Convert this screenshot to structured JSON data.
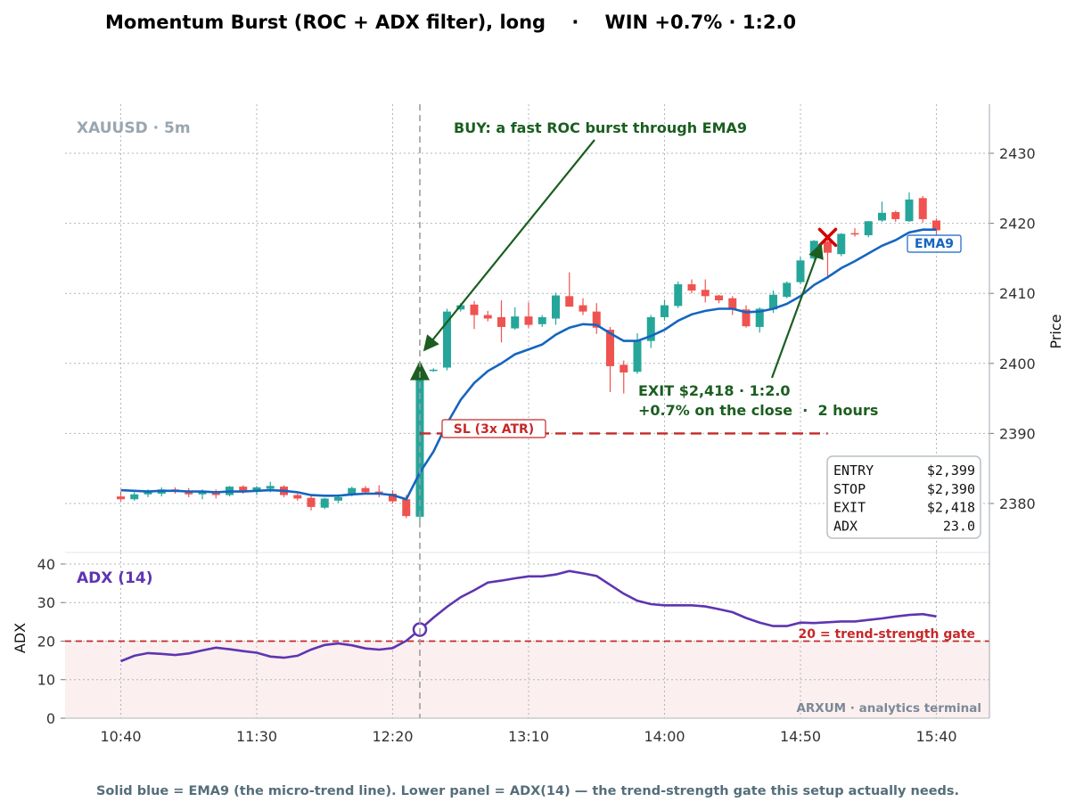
{
  "title": "Momentum Burst (ROC + ADX filter), long    ·    WIN +0.7% · 1:2.0",
  "footer": "Solid blue = EMA9 (the micro-trend line). Lower panel = ADX(14) — the trend-strength gate this setup actually needs.",
  "colors": {
    "bull": "#26a69a",
    "bear": "#ef5350",
    "ema": "#1565c0",
    "adx": "#5e35b1",
    "stop": "#c62828",
    "annot": "#1b5e20",
    "exit_marker": "#d50000"
  },
  "chart_data": [
    {
      "type": "candlestick",
      "instrument_label": "XAUUSD · 5m",
      "ylabel": "Price",
      "ylim": [
        2373,
        2437
      ],
      "yticks": [
        2380,
        2390,
        2400,
        2410,
        2420,
        2430
      ],
      "xticks": [
        "10:40",
        "11:30",
        "12:20",
        "13:10",
        "14:00",
        "14:50",
        "15:40"
      ],
      "grid": true,
      "candles": [
        {
          "t": "10:40",
          "o": 2381,
          "h": 2381.7,
          "l": 2380.3,
          "c": 2380.6
        },
        {
          "t": "10:45",
          "o": 2380.6,
          "h": 2381.6,
          "l": 2380.4,
          "c": 2381.3
        },
        {
          "t": "10:50",
          "o": 2381.3,
          "h": 2382.0,
          "l": 2380.9,
          "c": 2381.6
        },
        {
          "t": "10:55",
          "o": 2381.4,
          "h": 2382.3,
          "l": 2381.0,
          "c": 2382.0
        },
        {
          "t": "11:00",
          "o": 2382.0,
          "h": 2382.3,
          "l": 2381.4,
          "c": 2381.8
        },
        {
          "t": "11:05",
          "o": 2381.8,
          "h": 2382.2,
          "l": 2380.9,
          "c": 2381.3
        },
        {
          "t": "11:10",
          "o": 2381.3,
          "h": 2382.0,
          "l": 2380.6,
          "c": 2381.7
        },
        {
          "t": "11:15",
          "o": 2381.7,
          "h": 2382.0,
          "l": 2380.7,
          "c": 2381.2
        },
        {
          "t": "11:20",
          "o": 2381.2,
          "h": 2382.5,
          "l": 2381.0,
          "c": 2382.4
        },
        {
          "t": "11:25",
          "o": 2382.4,
          "h": 2382.6,
          "l": 2381.4,
          "c": 2381.8
        },
        {
          "t": "11:30",
          "o": 2381.8,
          "h": 2382.5,
          "l": 2381.2,
          "c": 2382.3
        },
        {
          "t": "11:35",
          "o": 2382.1,
          "h": 2383.1,
          "l": 2381.6,
          "c": 2382.5
        },
        {
          "t": "11:40",
          "o": 2382.4,
          "h": 2382.6,
          "l": 2380.9,
          "c": 2381.2
        },
        {
          "t": "11:45",
          "o": 2381.2,
          "h": 2381.4,
          "l": 2380.4,
          "c": 2380.7
        },
        {
          "t": "11:50",
          "o": 2380.8,
          "h": 2381.1,
          "l": 2379.0,
          "c": 2379.5
        },
        {
          "t": "11:55",
          "o": 2379.4,
          "h": 2380.8,
          "l": 2379.2,
          "c": 2380.7
        },
        {
          "t": "12:00",
          "o": 2380.4,
          "h": 2381.3,
          "l": 2380.1,
          "c": 2380.9
        },
        {
          "t": "12:05",
          "o": 2381.3,
          "h": 2382.4,
          "l": 2381.0,
          "c": 2382.2
        },
        {
          "t": "12:10",
          "o": 2382.2,
          "h": 2382.5,
          "l": 2381.3,
          "c": 2381.6
        },
        {
          "t": "12:15",
          "o": 2381.7,
          "h": 2382.6,
          "l": 2380.9,
          "c": 2381.5
        },
        {
          "t": "12:20",
          "o": 2381.4,
          "h": 2381.9,
          "l": 2380.0,
          "c": 2380.3
        },
        {
          "t": "12:25",
          "o": 2380.6,
          "h": 2381.2,
          "l": 2377.9,
          "c": 2378.2
        },
        {
          "t": "12:30",
          "o": 2378.1,
          "h": 2399.4,
          "l": 2377.4,
          "c": 2399.1
        },
        {
          "t": "12:35",
          "o": 2399.0,
          "h": 2399.3,
          "l": 2398.8,
          "c": 2399.1
        },
        {
          "t": "12:40",
          "o": 2399.4,
          "h": 2407.8,
          "l": 2399.0,
          "c": 2407.4
        },
        {
          "t": "12:45",
          "o": 2407.7,
          "h": 2408.6,
          "l": 2407.4,
          "c": 2408.3
        },
        {
          "t": "12:50",
          "o": 2408.4,
          "h": 2408.9,
          "l": 2404.9,
          "c": 2406.9
        },
        {
          "t": "12:55",
          "o": 2406.9,
          "h": 2407.5,
          "l": 2406.0,
          "c": 2406.4
        },
        {
          "t": "13:00",
          "o": 2406.6,
          "h": 2409.0,
          "l": 2403.0,
          "c": 2405.2
        },
        {
          "t": "13:05",
          "o": 2405.0,
          "h": 2408.0,
          "l": 2404.8,
          "c": 2406.7
        },
        {
          "t": "13:10",
          "o": 2406.7,
          "h": 2408.7,
          "l": 2405.1,
          "c": 2405.5
        },
        {
          "t": "13:15",
          "o": 2405.6,
          "h": 2406.9,
          "l": 2405.2,
          "c": 2406.6
        },
        {
          "t": "13:20",
          "o": 2406.4,
          "h": 2410.1,
          "l": 2405.5,
          "c": 2409.7
        },
        {
          "t": "13:25",
          "o": 2409.6,
          "h": 2413.0,
          "l": 2408.1,
          "c": 2408.1
        },
        {
          "t": "13:30",
          "o": 2408.3,
          "h": 2409.3,
          "l": 2406.9,
          "c": 2407.4
        },
        {
          "t": "13:35",
          "o": 2407.4,
          "h": 2408.6,
          "l": 2404.2,
          "c": 2405.1
        },
        {
          "t": "13:40",
          "o": 2404.8,
          "h": 2405.2,
          "l": 2395.9,
          "c": 2399.6
        },
        {
          "t": "13:45",
          "o": 2399.8,
          "h": 2400.4,
          "l": 2395.7,
          "c": 2398.7
        },
        {
          "t": "13:50",
          "o": 2398.8,
          "h": 2404.3,
          "l": 2398.5,
          "c": 2403.2
        },
        {
          "t": "13:55",
          "o": 2403.2,
          "h": 2406.9,
          "l": 2402.2,
          "c": 2406.6
        },
        {
          "t": "14:00",
          "o": 2406.6,
          "h": 2409.1,
          "l": 2406.1,
          "c": 2408.3
        },
        {
          "t": "14:05",
          "o": 2408.2,
          "h": 2411.7,
          "l": 2407.9,
          "c": 2411.3
        },
        {
          "t": "14:10",
          "o": 2411.3,
          "h": 2412.0,
          "l": 2410.0,
          "c": 2410.4
        },
        {
          "t": "14:15",
          "o": 2410.5,
          "h": 2412.0,
          "l": 2408.7,
          "c": 2409.6
        },
        {
          "t": "14:20",
          "o": 2409.7,
          "h": 2409.8,
          "l": 2408.6,
          "c": 2409.0
        },
        {
          "t": "14:25",
          "o": 2409.3,
          "h": 2409.6,
          "l": 2406.9,
          "c": 2407.7
        },
        {
          "t": "14:30",
          "o": 2407.7,
          "h": 2408.3,
          "l": 2405.1,
          "c": 2405.3
        },
        {
          "t": "14:35",
          "o": 2405.2,
          "h": 2408.0,
          "l": 2404.4,
          "c": 2407.8
        },
        {
          "t": "14:40",
          "o": 2407.7,
          "h": 2410.4,
          "l": 2407.2,
          "c": 2409.8
        },
        {
          "t": "14:45",
          "o": 2409.5,
          "h": 2411.7,
          "l": 2409.3,
          "c": 2411.5
        },
        {
          "t": "14:50",
          "o": 2411.6,
          "h": 2415.2,
          "l": 2411.3,
          "c": 2414.7
        },
        {
          "t": "14:55",
          "o": 2415.0,
          "h": 2417.6,
          "l": 2414.8,
          "c": 2417.5
        },
        {
          "t": "15:00",
          "o": 2417.4,
          "h": 2418.2,
          "l": 2412.1,
          "c": 2415.8
        },
        {
          "t": "15:05",
          "o": 2415.6,
          "h": 2418.6,
          "l": 2415.3,
          "c": 2418.5
        },
        {
          "t": "15:10",
          "o": 2418.6,
          "h": 2419.3,
          "l": 2418.1,
          "c": 2418.4
        },
        {
          "t": "15:15",
          "o": 2418.3,
          "h": 2420.3,
          "l": 2418.0,
          "c": 2420.3
        },
        {
          "t": "15:20",
          "o": 2420.4,
          "h": 2423.1,
          "l": 2420.2,
          "c": 2421.5
        },
        {
          "t": "15:25",
          "o": 2421.6,
          "h": 2421.8,
          "l": 2420.2,
          "c": 2420.6
        },
        {
          "t": "15:30",
          "o": 2420.3,
          "h": 2424.4,
          "l": 2420.2,
          "c": 2423.4
        },
        {
          "t": "15:35",
          "o": 2423.6,
          "h": 2423.9,
          "l": 2420.1,
          "c": 2420.6
        },
        {
          "t": "15:40",
          "o": 2420.4,
          "h": 2420.7,
          "l": 2418.3,
          "c": 2419.0
        }
      ],
      "series": [
        {
          "name": "EMA9",
          "values": [
            2381.9,
            2381.8,
            2381.7,
            2381.8,
            2381.8,
            2381.7,
            2381.7,
            2381.6,
            2381.7,
            2381.7,
            2381.8,
            2381.9,
            2381.8,
            2381.6,
            2381.2,
            2381.1,
            2381.1,
            2381.3,
            2381.4,
            2381.4,
            2381.2,
            2380.6,
            2384.4,
            2387.4,
            2391.4,
            2394.8,
            2397.2,
            2398.9,
            2400.0,
            2401.3,
            2402.0,
            2402.7,
            2404.1,
            2405.1,
            2405.6,
            2405.5,
            2404.3,
            2403.2,
            2403.2,
            2403.9,
            2404.8,
            2406.1,
            2407.0,
            2407.5,
            2407.8,
            2407.8,
            2407.3,
            2407.4,
            2407.8,
            2408.5,
            2409.6,
            2411.2,
            2412.3,
            2413.6,
            2414.6,
            2415.7,
            2416.8,
            2417.6,
            2418.7,
            2419.1,
            2419.1
          ]
        }
      ],
      "annotations": {
        "buy": "BUY: a fast ROC burst through EMA9",
        "exit_line1": "EXIT $2,418 · 1:2.0",
        "exit_line2": "+0.7% on the close  ·  2 hours",
        "sl_label": "SL (3x ATR)",
        "ema_label": "EMA9",
        "entry": {
          "t": "12:30",
          "price": 2399
        },
        "stop": 2390,
        "exit": {
          "t": "15:00",
          "price": 2418
        }
      },
      "stats": [
        {
          "label": "ENTRY",
          "value": "$2,399"
        },
        {
          "label": "STOP",
          "value": "$2,390"
        },
        {
          "label": "EXIT",
          "value": "$2,418"
        },
        {
          "label": "ADX",
          "value": "23.0"
        }
      ]
    },
    {
      "type": "line",
      "panel_label": "ADX (14)",
      "ylabel": "ADX",
      "ylim": [
        0,
        43
      ],
      "yticks": [
        0,
        10,
        20,
        30,
        40
      ],
      "threshold": 20,
      "threshold_label": "20 = trend-strength gate",
      "series": [
        {
          "name": "ADX (14)",
          "values": [
            14.8,
            16.2,
            16.9,
            16.7,
            16.4,
            16.8,
            17.6,
            18.3,
            17.9,
            17.4,
            17.0,
            16.0,
            15.7,
            16.2,
            17.8,
            19.0,
            19.4,
            18.9,
            18.1,
            17.8,
            18.2,
            20.1,
            23.0,
            26.1,
            28.9,
            31.4,
            33.2,
            35.2,
            35.7,
            36.3,
            36.8,
            36.8,
            37.3,
            38.2,
            37.6,
            36.9,
            34.6,
            32.3,
            30.5,
            29.6,
            29.3,
            29.3,
            29.3,
            29.0,
            28.3,
            27.5,
            26.0,
            24.8,
            23.9,
            23.9,
            24.8,
            24.7,
            24.9,
            25.1,
            25.1,
            25.5,
            25.9,
            26.4,
            26.8,
            27.0,
            26.4
          ]
        }
      ],
      "watermark": "ARXUM · analytics terminal"
    }
  ]
}
